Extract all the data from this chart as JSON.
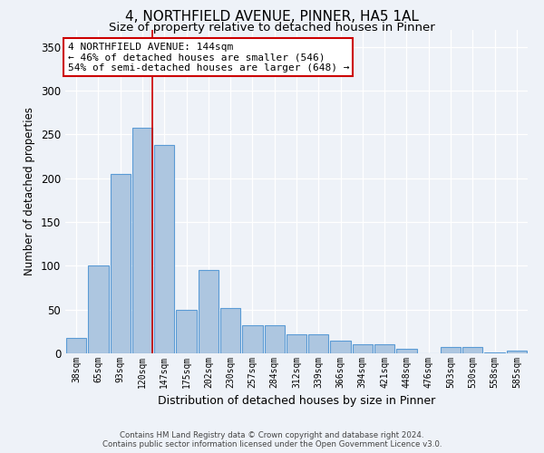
{
  "title1": "4, NORTHFIELD AVENUE, PINNER, HA5 1AL",
  "title2": "Size of property relative to detached houses in Pinner",
  "xlabel": "Distribution of detached houses by size in Pinner",
  "ylabel": "Number of detached properties",
  "categories": [
    "38sqm",
    "65sqm",
    "93sqm",
    "120sqm",
    "147sqm",
    "175sqm",
    "202sqm",
    "230sqm",
    "257sqm",
    "284sqm",
    "312sqm",
    "339sqm",
    "366sqm",
    "394sqm",
    "421sqm",
    "448sqm",
    "476sqm",
    "503sqm",
    "530sqm",
    "558sqm",
    "585sqm"
  ],
  "values": [
    18,
    100,
    205,
    258,
    238,
    50,
    95,
    52,
    32,
    32,
    22,
    22,
    15,
    10,
    10,
    5,
    0,
    7,
    7,
    1,
    3
  ],
  "bar_color": "#adc6e0",
  "bar_edge_color": "#5b9bd5",
  "vline_color": "#cc0000",
  "vline_x_index": 3,
  "annotation_text": "4 NORTHFIELD AVENUE: 144sqm\n← 46% of detached houses are smaller (546)\n54% of semi-detached houses are larger (648) →",
  "annotation_box_color": "#ffffff",
  "annotation_box_edge": "#cc0000",
  "background_color": "#eef2f8",
  "grid_color": "#ffffff",
  "footer1": "Contains HM Land Registry data © Crown copyright and database right 2024.",
  "footer2": "Contains public sector information licensed under the Open Government Licence v3.0.",
  "ylim": [
    0,
    370
  ],
  "title1_fontsize": 11,
  "title2_fontsize": 9.5,
  "ylabel_fontsize": 8.5,
  "xlabel_fontsize": 9
}
